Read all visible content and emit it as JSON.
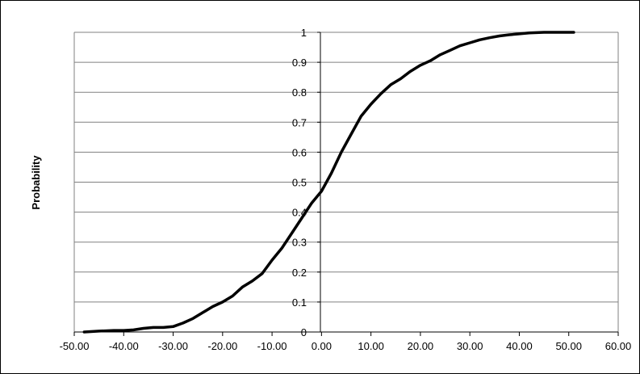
{
  "chart_data": {
    "type": "line",
    "title": "",
    "xlabel": "",
    "ylabel": "Probability",
    "xlim": [
      -50,
      60
    ],
    "ylim": [
      0,
      1
    ],
    "x_ticks": [
      -50,
      -40,
      -30,
      -20,
      -10,
      0,
      10,
      20,
      30,
      40,
      50,
      60
    ],
    "x_tick_labels": [
      "-50.00",
      "-40.00",
      "-30.00",
      "-20.00",
      "-10.00",
      "0.00",
      "10.00",
      "20.00",
      "30.00",
      "40.00",
      "50.00",
      "60.00"
    ],
    "y_ticks": [
      0,
      0.1,
      0.2,
      0.3,
      0.4,
      0.5,
      0.6,
      0.7,
      0.8,
      0.9,
      1
    ],
    "y_tick_labels": [
      "0",
      "0.1",
      "0.2",
      "0.3",
      "0.4",
      "0.5",
      "0.6",
      "0.7",
      "0.8",
      "0.9",
      "1"
    ],
    "grid": {
      "horizontal": true,
      "vertical": false
    },
    "legend": "none",
    "line_color": "#000000",
    "gridline_color": "#808080",
    "series": [
      {
        "x": [
          -48.0,
          -45.0,
          -42.0,
          -40.0,
          -38.0,
          -36.0,
          -34.0,
          -32.0,
          -30.0,
          -28.0,
          -26.0,
          -24.0,
          -22.0,
          -20.0,
          -18.0,
          -16.0,
          -14.0,
          -12.0,
          -10.0,
          -8.0,
          -6.0,
          -4.0,
          -2.0,
          0.0,
          2.0,
          4.0,
          6.0,
          8.0,
          10.0,
          12.0,
          14.0,
          16.0,
          18.0,
          20.0,
          22.0,
          24.0,
          26.0,
          28.0,
          30.0,
          32.0,
          34.0,
          36.0,
          38.0,
          40.0,
          42.0,
          45.0,
          48.0,
          51.0
        ],
        "y": [
          0.0,
          0.003,
          0.005,
          0.005,
          0.007,
          0.012,
          0.015,
          0.015,
          0.018,
          0.03,
          0.045,
          0.065,
          0.085,
          0.1,
          0.12,
          0.15,
          0.17,
          0.195,
          0.24,
          0.28,
          0.33,
          0.38,
          0.43,
          0.47,
          0.53,
          0.6,
          0.66,
          0.72,
          0.76,
          0.795,
          0.825,
          0.845,
          0.87,
          0.89,
          0.905,
          0.925,
          0.94,
          0.955,
          0.965,
          0.975,
          0.982,
          0.988,
          0.992,
          0.995,
          0.998,
          1.0,
          1.0,
          1.0
        ]
      }
    ]
  }
}
